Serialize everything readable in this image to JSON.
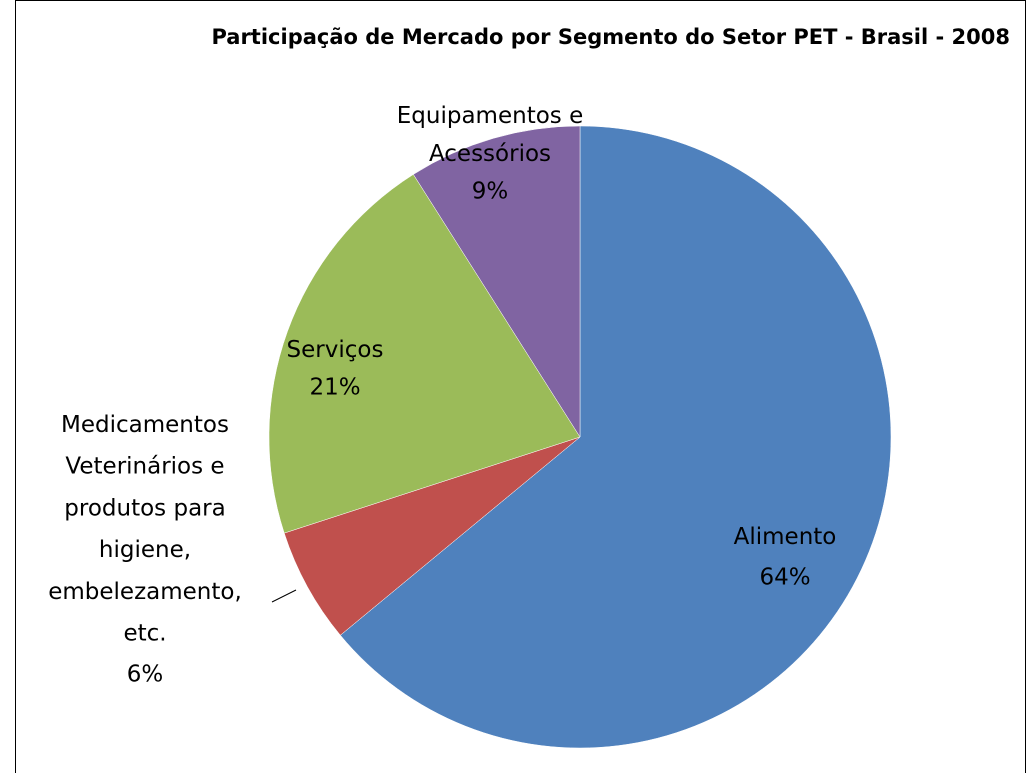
{
  "chart_data": {
    "type": "pie",
    "title": "Participação de Mercado por Segmento do Setor PET - Brasil - 2008",
    "categories": [
      "Alimento",
      "Medicamentos Veterinários e produtos para higiene, embelezamento, etc.",
      "Serviços",
      "Equipamentos e Acessórios"
    ],
    "values": [
      64,
      6,
      21,
      9
    ],
    "value_labels": [
      "64%",
      "6%",
      "21%",
      "9%"
    ],
    "colors": [
      "#4f81bd",
      "#c0504d",
      "#9bbb59",
      "#8064a2"
    ]
  }
}
